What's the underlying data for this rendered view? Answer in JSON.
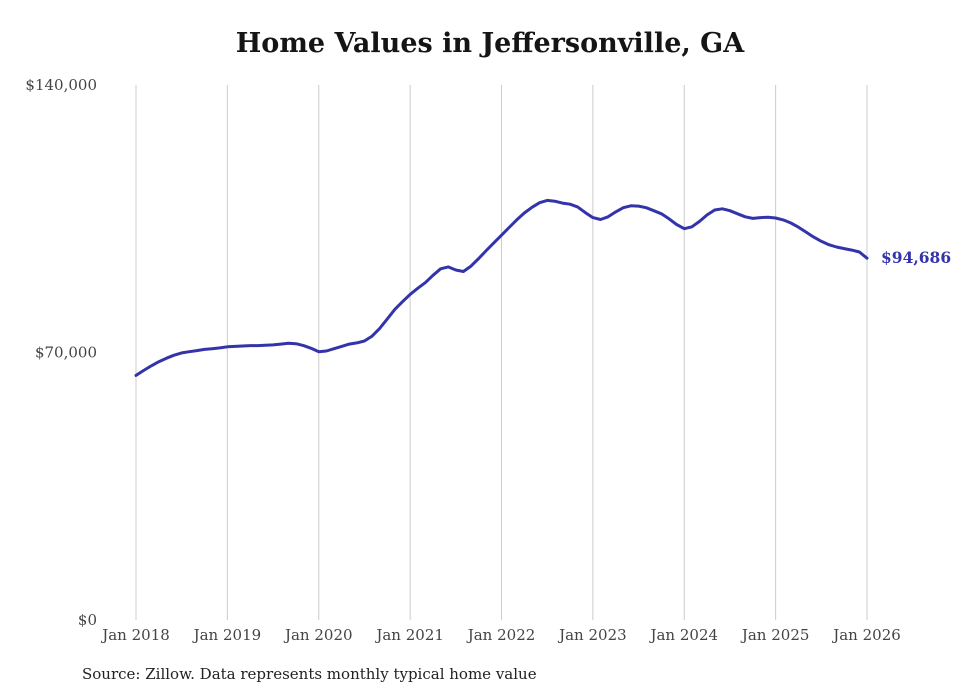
{
  "title": "Home Values in Jeffersonville, GA",
  "source": "Source: Zillow. Data represents monthly typical home value",
  "end_label": "$94,686",
  "colors": {
    "line": "#3333aa",
    "annotation": "#3333aa",
    "grid": "#cccccc",
    "axis_text": "#444444",
    "title_text": "#151515"
  },
  "chart_data": {
    "type": "line",
    "title": "Home Values in Jeffersonville, GA",
    "xlabel": "",
    "ylabel": "",
    "ylim": [
      0,
      140000
    ],
    "grid": "vertical-only",
    "legend": "none",
    "yticks": [
      {
        "value": 0,
        "label": "$0"
      },
      {
        "value": 70000,
        "label": "$70,000"
      },
      {
        "value": 140000,
        "label": "$140,000"
      }
    ],
    "xticks": [
      "Jan 2018",
      "Jan 2019",
      "Jan 2020",
      "Jan 2021",
      "Jan 2022",
      "Jan 2023",
      "Jan 2024",
      "Jan 2025",
      "Jan 2026"
    ],
    "x_tick_every": 12,
    "x_start_month": "2018-01",
    "x_end_month": "2026-01",
    "series": [
      {
        "name": "Monthly typical home value",
        "values": [
          64000,
          65300,
          66500,
          67600,
          68500,
          69300,
          69900,
          70200,
          70500,
          70800,
          71000,
          71200,
          71500,
          71600,
          71700,
          71800,
          71800,
          71900,
          72000,
          72200,
          72400,
          72300,
          71800,
          71100,
          70200,
          70400,
          71000,
          71600,
          72200,
          72500,
          73000,
          74300,
          76300,
          78800,
          81300,
          83300,
          85200,
          86800,
          88300,
          90200,
          91900,
          92400,
          91600,
          91200,
          92600,
          94600,
          96700,
          98700,
          100700,
          102700,
          104700,
          106500,
          108000,
          109200,
          109800,
          109600,
          109100,
          108800,
          108100,
          106600,
          105300,
          104800,
          105500,
          106800,
          107900,
          108400,
          108300,
          107900,
          107100,
          106300,
          105000,
          103500,
          102400,
          102900,
          104300,
          106000,
          107300,
          107600,
          107100,
          106300,
          105500,
          105100,
          105300,
          105400,
          105200,
          104700,
          103900,
          102800,
          101500,
          100200,
          99100,
          98200,
          97600,
          97200,
          96800,
          96300,
          94686
        ]
      }
    ],
    "final_value": 94686,
    "final_value_label": "$94,686"
  }
}
